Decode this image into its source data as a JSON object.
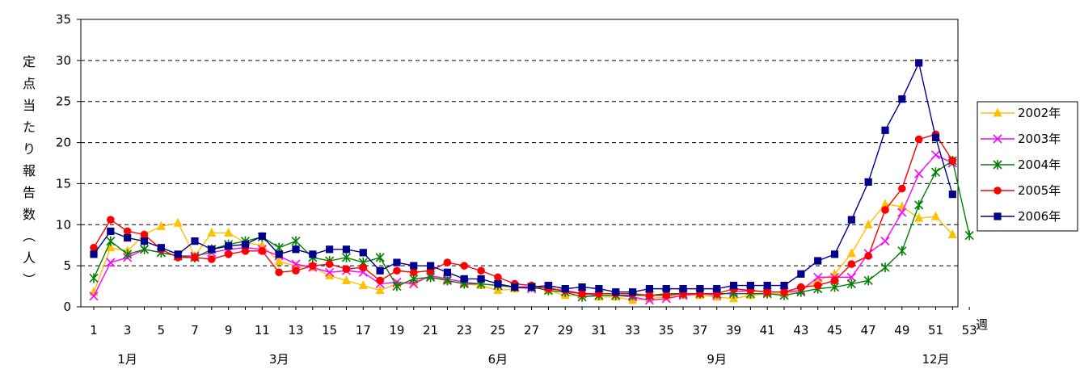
{
  "chart_data": {
    "type": "line",
    "ylabel": "定点当たり報告数（人）",
    "xlabel": "週",
    "ylim": [
      0,
      35
    ],
    "y_ticks": [
      "0",
      "5",
      "10",
      "15",
      "20",
      "25",
      "30",
      "35"
    ],
    "x_ticks": [
      "1",
      "3",
      "5",
      "7",
      "9",
      "11",
      "13",
      "15",
      "17",
      "19",
      "21",
      "23",
      "25",
      "27",
      "29",
      "31",
      "33",
      "35",
      "37",
      "39",
      "41",
      "43",
      "45",
      "47",
      "49",
      "51",
      "53"
    ],
    "month_labels": [
      {
        "week": 3,
        "label": "1月"
      },
      {
        "week": 12,
        "label": "3月"
      },
      {
        "week": 25,
        "label": "6月"
      },
      {
        "week": 38,
        "label": "9月"
      },
      {
        "week": 51,
        "label": "12月"
      }
    ],
    "grid": "horizontal dashed",
    "legend_position": "right",
    "series": [
      {
        "name": "2002年",
        "color": "#FFC000",
        "marker": "triangle",
        "values": [
          1.8,
          7.2,
          6.8,
          8.8,
          9.8,
          10.2,
          6.2,
          9.0,
          9.0,
          7.8,
          7.5,
          5.5,
          5.0,
          4.8,
          3.8,
          3.2,
          2.6,
          2.0,
          2.8,
          3.0,
          3.8,
          3.2,
          2.8,
          2.6,
          2.0,
          2.2,
          2.4,
          2.0,
          1.4,
          1.4,
          1.2,
          1.2,
          0.8,
          1.0,
          1.2,
          1.4,
          1.4,
          1.2,
          1.0,
          1.4,
          1.6,
          1.6,
          2.0,
          3.2,
          4.0,
          6.5,
          10.0,
          12.5,
          12.2,
          10.8,
          11.0,
          8.8
        ]
      },
      {
        "name": "2003年",
        "color": "#FF00FF",
        "marker": "x",
        "values": [
          1.3,
          5.4,
          6.0,
          7.0,
          6.6,
          6.2,
          6.2,
          6.6,
          7.0,
          7.2,
          7.0,
          6.2,
          5.2,
          4.8,
          4.2,
          4.4,
          4.2,
          2.8,
          3.0,
          2.8,
          3.8,
          3.4,
          3.0,
          2.8,
          2.6,
          2.4,
          2.2,
          2.4,
          1.8,
          1.6,
          1.4,
          1.4,
          1.2,
          0.8,
          1.0,
          1.4,
          1.6,
          1.4,
          1.8,
          2.0,
          1.8,
          1.8,
          2.0,
          3.6,
          3.6,
          3.6,
          6.5,
          8.0,
          11.5,
          16.2,
          18.5,
          17.5
        ]
      },
      {
        "name": "2004年",
        "color": "#008000",
        "marker": "asterisk",
        "values": [
          3.5,
          8.0,
          6.4,
          7.0,
          6.6,
          6.2,
          6.0,
          7.0,
          7.6,
          8.0,
          8.5,
          7.2,
          8.0,
          6.0,
          5.6,
          6.0,
          5.4,
          6.0,
          2.5,
          3.4,
          3.6,
          3.2,
          2.8,
          2.8,
          2.6,
          2.4,
          2.4,
          2.0,
          1.8,
          1.2,
          1.4,
          1.4,
          1.4,
          1.4,
          1.6,
          1.6,
          1.6,
          1.6,
          1.6,
          1.6,
          1.6,
          1.4,
          1.8,
          2.2,
          2.4,
          2.8,
          3.2,
          4.8,
          6.8,
          12.4,
          16.4,
          17.8,
          8.7
        ]
      },
      {
        "name": "2005年",
        "color": "#FF0000",
        "marker": "circle",
        "values": [
          7.2,
          10.6,
          9.2,
          8.8,
          7.0,
          6.0,
          6.0,
          5.8,
          6.4,
          6.8,
          6.8,
          4.2,
          4.4,
          5.0,
          5.2,
          4.6,
          4.8,
          3.2,
          4.4,
          4.2,
          4.4,
          5.4,
          5.0,
          4.4,
          3.6,
          2.8,
          2.6,
          2.2,
          2.0,
          1.6,
          1.6,
          1.6,
          1.6,
          1.4,
          1.4,
          1.6,
          1.6,
          1.6,
          2.2,
          2.0,
          1.8,
          1.8,
          2.4,
          2.6,
          3.2,
          5.2,
          6.2,
          11.8,
          14.4,
          20.4,
          21.0,
          17.8
        ]
      },
      {
        "name": "2006年",
        "color": "#00008B",
        "marker": "square",
        "values": [
          6.4,
          9.2,
          8.4,
          8.0,
          7.2,
          6.4,
          8.0,
          7.0,
          7.4,
          7.6,
          8.6,
          6.4,
          7.0,
          6.4,
          7.0,
          7.0,
          6.6,
          4.4,
          5.4,
          5.0,
          5.0,
          4.2,
          3.4,
          3.4,
          2.8,
          2.4,
          2.4,
          2.6,
          2.2,
          2.4,
          2.2,
          1.8,
          1.8,
          2.2,
          2.2,
          2.2,
          2.2,
          2.2,
          2.6,
          2.6,
          2.6,
          2.6,
          4.0,
          5.6,
          6.4,
          10.6,
          15.2,
          21.5,
          25.3,
          29.7,
          20.6,
          13.7
        ]
      }
    ]
  }
}
